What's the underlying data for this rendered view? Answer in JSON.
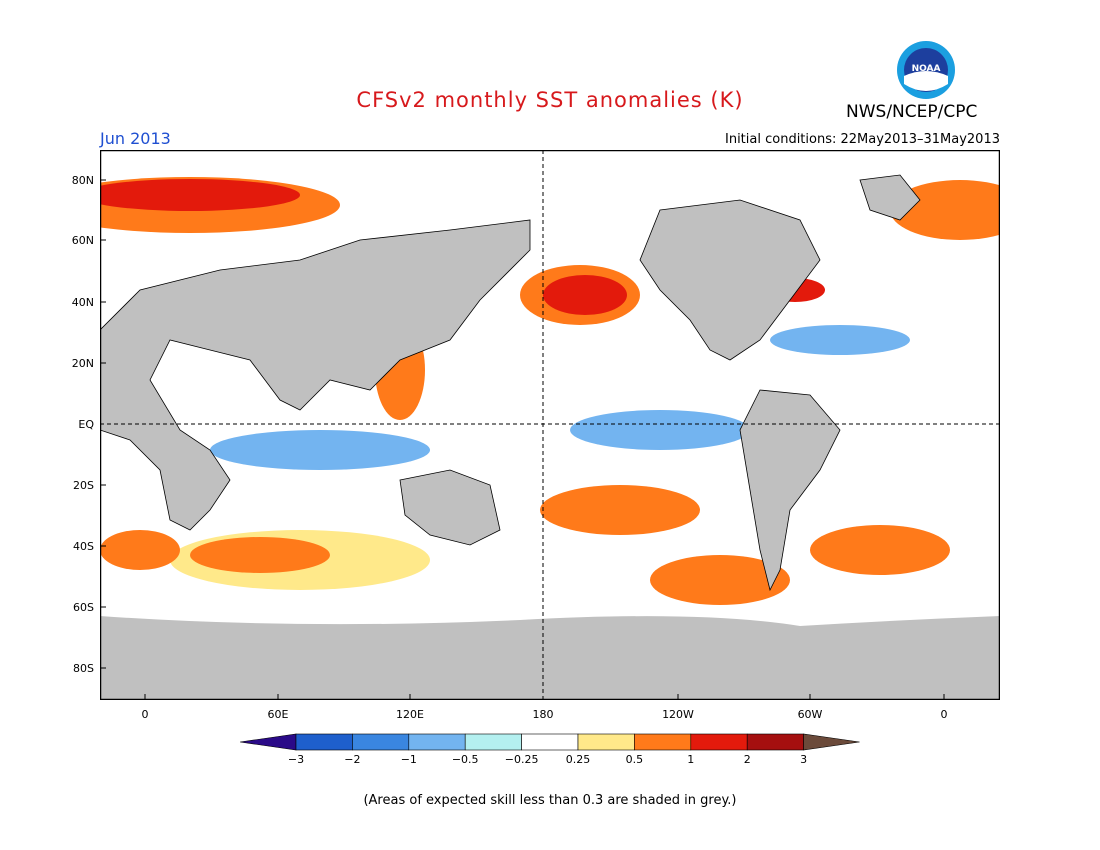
{
  "header": {
    "title": "CFSv2 monthly SST anomalies (K)",
    "agency": "NWS/NCEP/CPC",
    "month": "Jun 2013",
    "initial_conditions": "Initial conditions: 22May2013–31May2013"
  },
  "logo": {
    "text": "NOAA",
    "icon": "noaa-logo-icon"
  },
  "map": {
    "projection": "equirectangular",
    "land_color": "#c0c0c0",
    "ocean_base": "#ffffff",
    "low_skill_color": "#c0c0c0",
    "lat_labels": [
      "80N",
      "60N",
      "40N",
      "20N",
      "EQ",
      "20S",
      "40S",
      "60S",
      "80S"
    ],
    "lon_labels": [
      "0",
      "60E",
      "120E",
      "180",
      "120W",
      "60W",
      "0"
    ]
  },
  "colorbar": {
    "labels": [
      "−3",
      "−2",
      "−1",
      "−0.5",
      "−0.25",
      "0.25",
      "0.5",
      "1",
      "2",
      "3"
    ],
    "colors": [
      "#2a0a88",
      "#1e5fcc",
      "#3a86e0",
      "#73b4f0",
      "#b4f0f0",
      "#ffffff",
      "#ffe98a",
      "#ff7a1a",
      "#e31a0c",
      "#a50f0f",
      "#6b4a3a"
    ]
  },
  "footnote": "(Areas of expected skill less than 0.3 are shaded in grey.)"
}
